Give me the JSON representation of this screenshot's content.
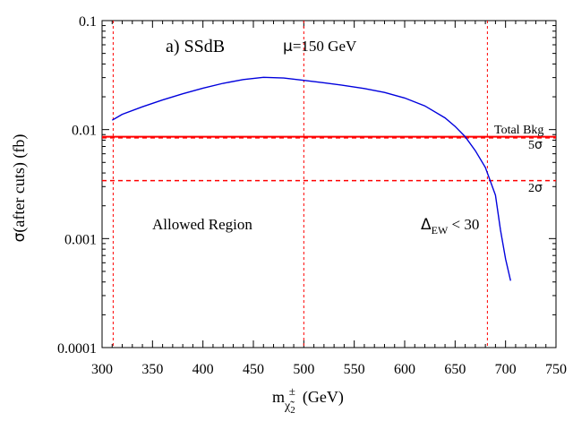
{
  "chart_data": {
    "type": "line",
    "title": "",
    "panel_label": "a) SSdB",
    "mu_symbol": "μ",
    "mu_value": "=150 GeV",
    "xlabel_main": "m",
    "xlabel_sub": "χ̃",
    "xlabel_sub_index": "2",
    "xlabel_sup": "±",
    "xlabel_unit": "(GeV)",
    "ylabel_symbol": "σ",
    "ylabel_text": "(after cuts) (fb)",
    "xlim": [
      300,
      750
    ],
    "ylim": [
      0.0001,
      0.1
    ],
    "yscale": "log",
    "xticks": [
      300,
      350,
      400,
      450,
      500,
      550,
      600,
      650,
      700,
      750
    ],
    "yticks": [
      {
        "value": 0.0001,
        "label": "0.0001"
      },
      {
        "value": 0.001,
        "label": "0.001"
      },
      {
        "value": 0.01,
        "label": "0.01"
      },
      {
        "value": 0.1,
        "label": "0.1"
      }
    ],
    "signal": {
      "name": "signal",
      "color": "#0000dd",
      "x": [
        310,
        320,
        340,
        360,
        380,
        400,
        420,
        440,
        460,
        480,
        500,
        520,
        540,
        560,
        580,
        600,
        620,
        640,
        650,
        660,
        670,
        680,
        690,
        695,
        700,
        705
      ],
      "y": [
        0.0122,
        0.0138,
        0.0162,
        0.0187,
        0.0213,
        0.024,
        0.0266,
        0.0288,
        0.0302,
        0.0297,
        0.0283,
        0.0269,
        0.0254,
        0.0238,
        0.0219,
        0.0195,
        0.0165,
        0.0128,
        0.0107,
        0.0086,
        0.0064,
        0.0045,
        0.0025,
        0.0012,
        0.00065,
        0.00041
      ]
    },
    "background": {
      "label": "Total Bkg",
      "value": 0.0086,
      "color": "#ff0000"
    },
    "five_sigma": {
      "label_num": "5",
      "label_sym": "σ",
      "value": 0.0084,
      "color": "#ff0000"
    },
    "two_sigma": {
      "label_num": "2",
      "label_sym": "σ",
      "value": 0.0034,
      "color": "#ff0000"
    },
    "vertical_lines": [
      {
        "x": 311,
        "color": "#ff0000"
      },
      {
        "x": 500,
        "color": "#ff0000"
      },
      {
        "x": 682,
        "color": "#ff0000"
      }
    ],
    "allowed_region_label": "Allowed Region",
    "delta_symbol": "Δ",
    "delta_sub": "EW",
    "delta_rest": " < 30"
  }
}
